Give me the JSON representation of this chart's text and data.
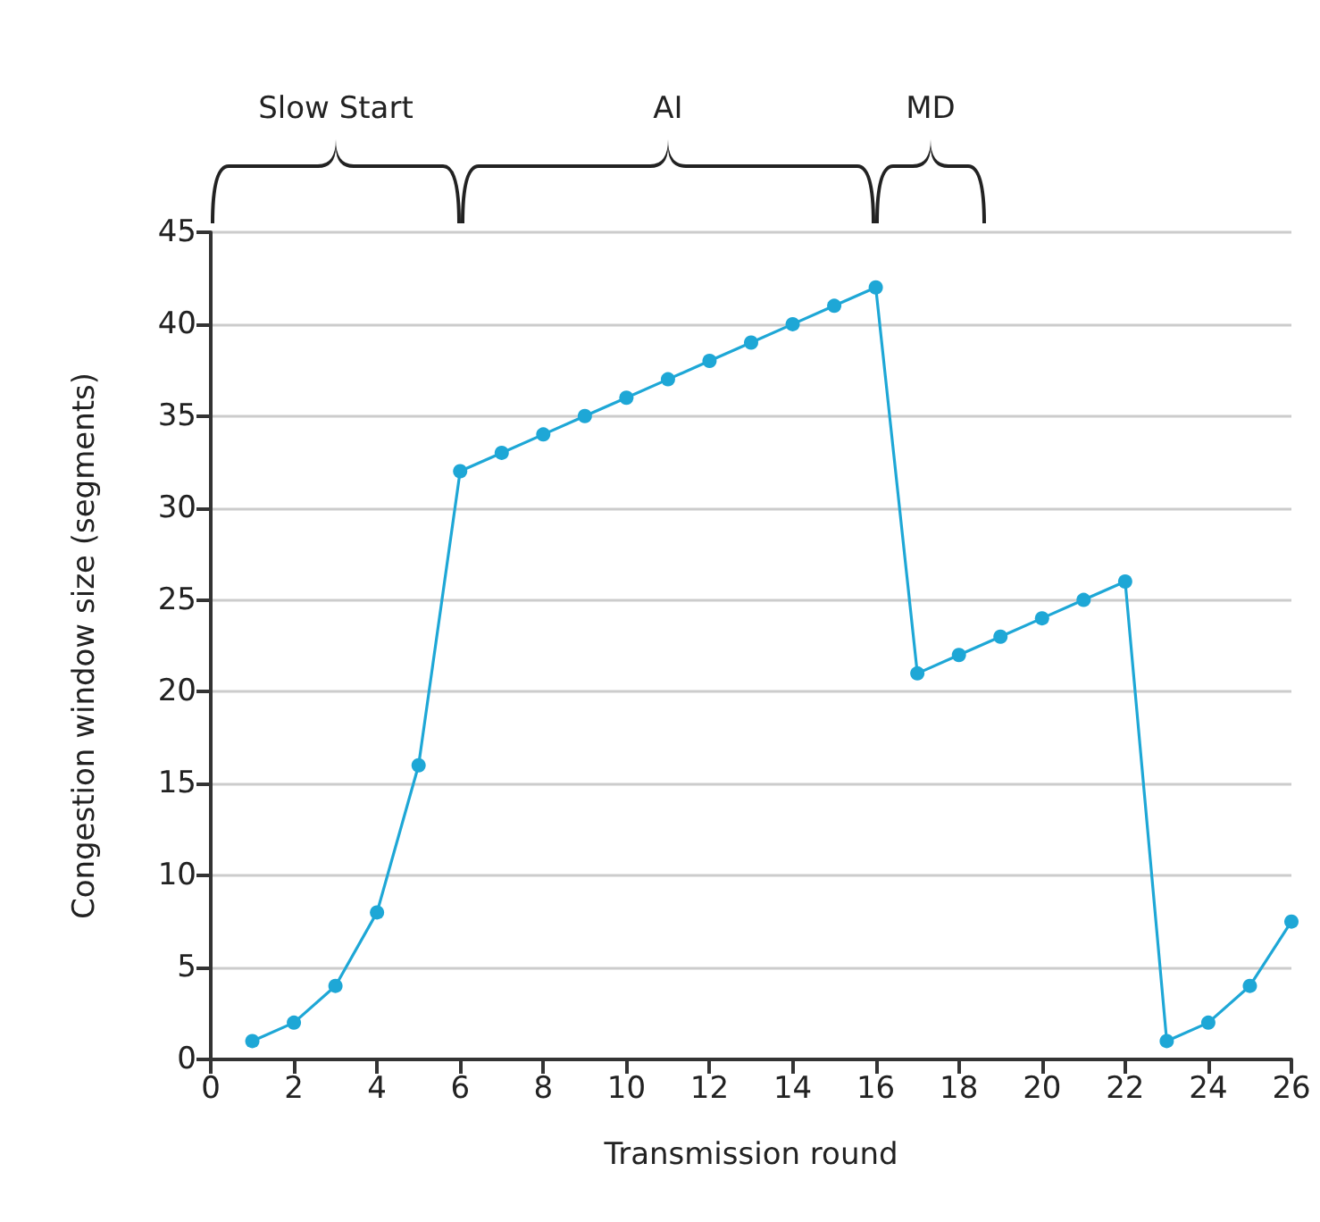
{
  "chart_data": {
    "type": "line",
    "xlabel": "Transmission round",
    "ylabel": "Congestion window size (segments)",
    "x": [
      1,
      2,
      3,
      4,
      5,
      6,
      7,
      8,
      9,
      10,
      11,
      12,
      13,
      14,
      15,
      16,
      17,
      18,
      19,
      20,
      21,
      22,
      23,
      24,
      25,
      26
    ],
    "series": [
      {
        "color": "#1ea7d6",
        "values": [
          1,
          2,
          4,
          8,
          16,
          32,
          33,
          34,
          35,
          36,
          37,
          38,
          39,
          40,
          41,
          42,
          21,
          22,
          23,
          24,
          25,
          26,
          1,
          2,
          4,
          7.5
        ]
      }
    ],
    "xlim": [
      0,
      26
    ],
    "xticks": [
      0,
      2,
      4,
      6,
      8,
      10,
      12,
      14,
      16,
      18,
      20,
      22,
      24,
      26
    ],
    "ylim": [
      0,
      45
    ],
    "yticks": [
      0,
      5,
      10,
      15,
      20,
      25,
      30,
      35,
      40,
      45
    ],
    "grid": "y",
    "marker": "circle",
    "line_style": "solid",
    "annotations": [
      "Slow Start",
      "AI",
      "MD"
    ]
  }
}
